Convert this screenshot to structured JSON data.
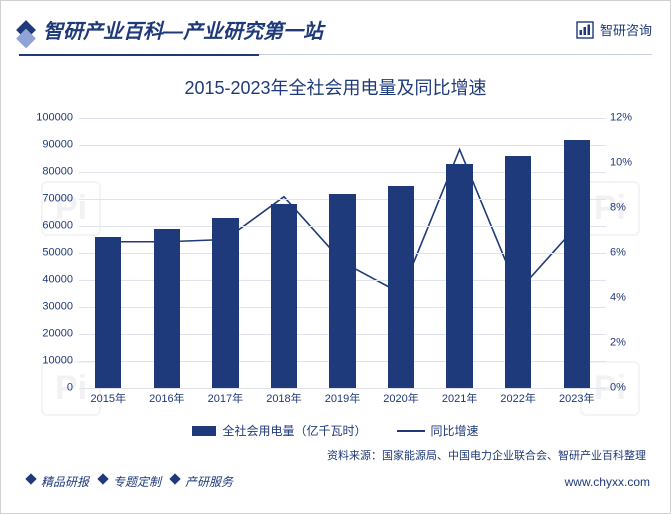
{
  "header": {
    "title": "智研产业百科—产业研究第一站",
    "brand": "智研咨询"
  },
  "chart": {
    "type": "bar+line",
    "title": "2015-2023年全社会用电量及同比增速",
    "categories": [
      "2015年",
      "2016年",
      "2017年",
      "2018年",
      "2019年",
      "2020年",
      "2021年",
      "2022年",
      "2023年"
    ],
    "bar_series_name": "全社会用电量（亿千瓦时）",
    "bar_values": [
      56000,
      59000,
      63000,
      68000,
      72000,
      75000,
      83000,
      86000,
      92000
    ],
    "line_series_name": "同比增速",
    "line_values_percent": [
      6.5,
      6.5,
      6.6,
      8.5,
      5.6,
      4.2,
      10.6,
      4.3,
      7.2
    ],
    "y_left": {
      "min": 0,
      "max": 100000,
      "step": 10000
    },
    "y_right": {
      "min": 0,
      "max": 12,
      "step": 2,
      "suffix": "%"
    },
    "bar_color": "#1f3a7a",
    "line_color": "#1f3a7a",
    "grid_color": "#e0e3ec",
    "background_color": "#ffffff",
    "bar_width_ratio": 0.45,
    "title_fontsize": 18,
    "axis_fontsize": 11
  },
  "source": "资料来源：国家能源局、中国电力企业联合会、智研产业百科整理",
  "footer": {
    "left_items": [
      "精品研报",
      "专题定制",
      "产研服务"
    ],
    "url": "www.chyxx.com"
  },
  "watermark_text": "Pi"
}
